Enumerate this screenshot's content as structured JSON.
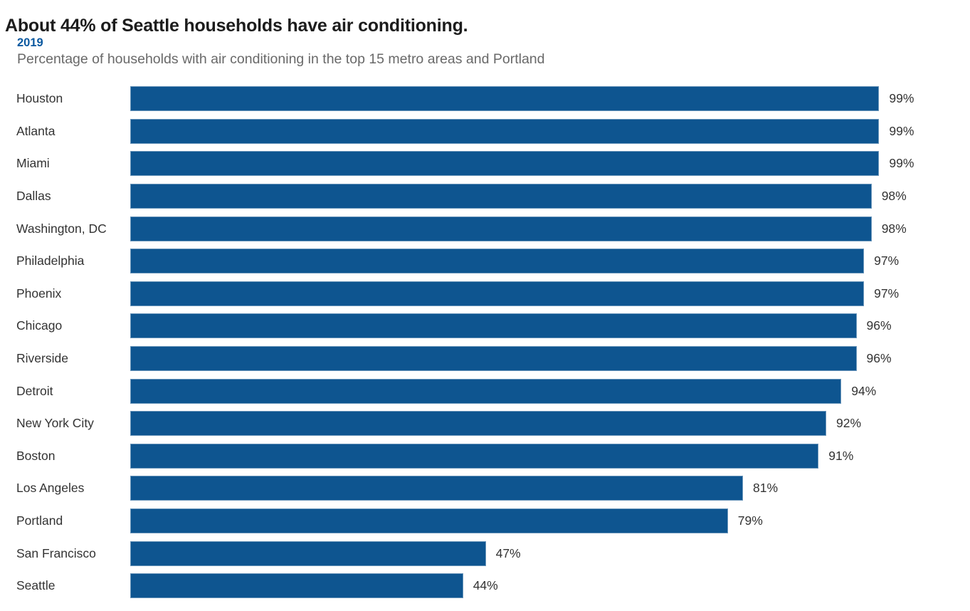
{
  "header": {
    "title": "About 44% of Seattle households have air conditioning.",
    "year_label": "2019",
    "subtitle": "Percentage of households with air conditioning in the top 15 metro areas and Portland"
  },
  "colors": {
    "bar": "#0e5590",
    "year": "#0c59a0",
    "title": "#1c1c1c",
    "subtitle": "#696969",
    "label": "#333333"
  },
  "chart_data": {
    "type": "bar",
    "orientation": "horizontal",
    "title": "About 44% of Seattle households have air conditioning.",
    "subtitle": "Percentage of households with air conditioning in the top 15 metro areas and Portland",
    "year": "2019",
    "categories": [
      "Houston",
      "Atlanta",
      "Miami",
      "Dallas",
      "Washington, DC",
      "Philadelphia",
      "Phoenix",
      "Chicago",
      "Riverside",
      "Detroit",
      "New York City",
      "Boston",
      "Los Angeles",
      "Portland",
      "San Francisco",
      "Seattle"
    ],
    "values": [
      99,
      99,
      99,
      98,
      98,
      97,
      97,
      96,
      96,
      94,
      92,
      91,
      81,
      79,
      47,
      44
    ],
    "value_suffix": "%",
    "xlim": [
      0,
      100
    ],
    "grid": false,
    "legend": false,
    "value_labels": "outside-end",
    "bar_color": "#0e5590"
  }
}
